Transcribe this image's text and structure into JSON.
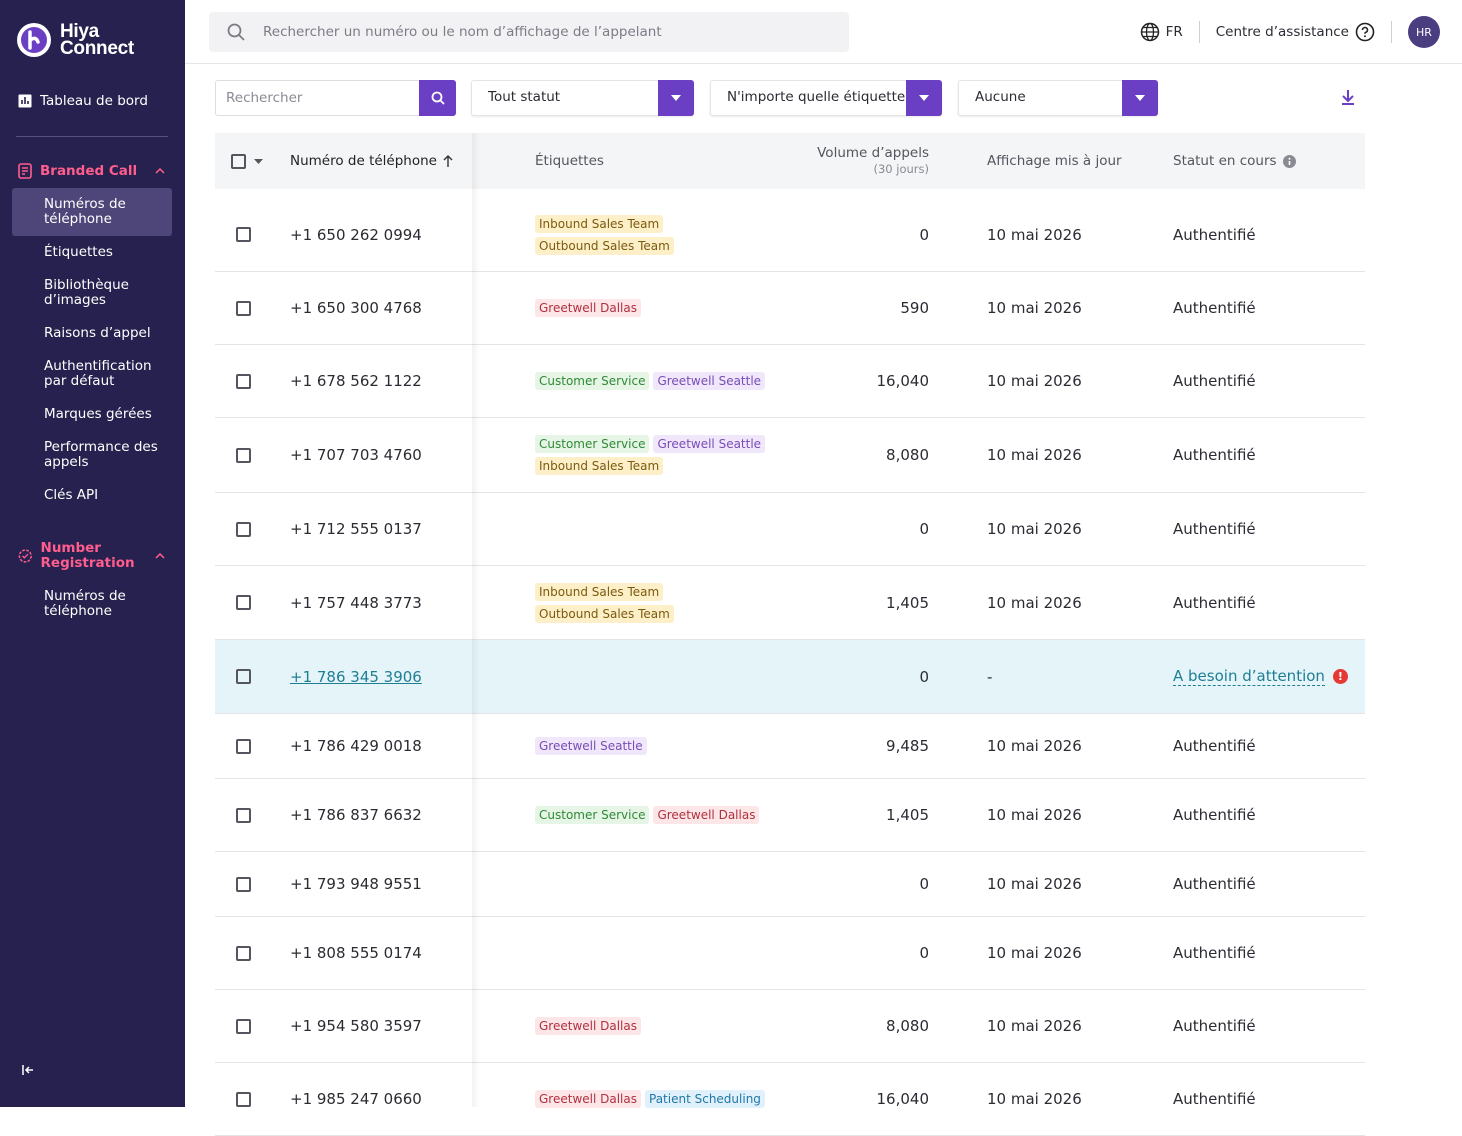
{
  "brand": {
    "line1": "Hiya",
    "line2": "Connect"
  },
  "nav": {
    "dashboard": "Tableau de bord",
    "sections": [
      {
        "title": "Branded Call",
        "items": [
          "Numéros de téléphone",
          "Étiquettes",
          "Bibliothèque d’images",
          "Raisons d’appel",
          "Authentification par défaut",
          "Marques gérées",
          "Performance des appels",
          "Clés API"
        ]
      },
      {
        "title": "Number Registration",
        "items": [
          "Numéros de téléphone"
        ]
      }
    ]
  },
  "topbar": {
    "search_placeholder": "Rechercher un numéro ou le nom d’affichage de l’appelant",
    "language": "FR",
    "help": "Centre d’assistance",
    "avatar": "HR"
  },
  "filters": {
    "search_placeholder": "Rechercher",
    "status": "Tout statut",
    "label": "N'importe quelle étiquette",
    "other": "Aucune"
  },
  "table": {
    "headers": {
      "phone": "Numéro de téléphone",
      "labels": "Étiquettes",
      "volume": "Volume d’appels",
      "volume_sub": "(30 jours)",
      "updated": "Affichage mis à jour",
      "status": "Statut en cours"
    },
    "rows": [
      {
        "phone": "+1 650 262 0994",
        "tags": [
          {
            "label": "Inbound Sales Team",
            "tone": "yellow"
          },
          {
            "label": "Outbound Sales Team",
            "tone": "yellow"
          }
        ],
        "volume": "0",
        "updated": "10 mai 2026",
        "status": "Authentifié"
      },
      {
        "phone": "+1 650 300 4768",
        "tags": [
          {
            "label": "Greetwell Dallas",
            "tone": "red"
          }
        ],
        "volume": "590",
        "updated": "10 mai 2026",
        "status": "Authentifié"
      },
      {
        "phone": "+1 678 562 1122",
        "tags": [
          {
            "label": "Customer Service",
            "tone": "green"
          },
          {
            "label": "Greetwell Seattle",
            "tone": "purple"
          }
        ],
        "volume": "16,040",
        "updated": "10 mai 2026",
        "status": "Authentifié"
      },
      {
        "phone": "+1 707 703 4760",
        "tags": [
          {
            "label": "Customer Service",
            "tone": "green"
          },
          {
            "label": "Greetwell Seattle",
            "tone": "purple"
          },
          {
            "label": "Inbound Sales Team",
            "tone": "yellow"
          }
        ],
        "volume": "8,080",
        "updated": "10 mai 2026",
        "status": "Authentifié"
      },
      {
        "phone": "+1 712 555 0137",
        "tags": [],
        "volume": "0",
        "updated": "10 mai 2026",
        "status": "Authentifié"
      },
      {
        "phone": "+1 757 448 3773",
        "tags": [
          {
            "label": "Inbound Sales Team",
            "tone": "yellow"
          },
          {
            "label": "Outbound Sales Team",
            "tone": "yellow"
          }
        ],
        "volume": "1,405",
        "updated": "10 mai 2026",
        "status": "Authentifié"
      },
      {
        "phone": "+1 786 345 3906",
        "tags": [],
        "volume": "0",
        "updated": "-",
        "status": "A besoin d’attention",
        "highlighted": true
      },
      {
        "phone": "+1 786 429 0018",
        "tags": [
          {
            "label": "Greetwell Seattle",
            "tone": "purple"
          }
        ],
        "volume": "9,485",
        "updated": "10 mai 2026",
        "status": "Authentifié"
      },
      {
        "phone": "+1 786 837 6632",
        "tags": [
          {
            "label": "Customer Service",
            "tone": "green"
          },
          {
            "label": "Greetwell Dallas",
            "tone": "red"
          }
        ],
        "volume": "1,405",
        "updated": "10 mai 2026",
        "status": "Authentifié"
      },
      {
        "phone": "+1 793 948 9551",
        "tags": [],
        "volume": "0",
        "updated": "10 mai 2026",
        "status": "Authentifié"
      },
      {
        "phone": "+1 808 555 0174",
        "tags": [],
        "volume": "0",
        "updated": "10 mai 2026",
        "status": "Authentifié"
      },
      {
        "phone": "+1 954 580 3597",
        "tags": [
          {
            "label": "Greetwell Dallas",
            "tone": "red"
          }
        ],
        "volume": "8,080",
        "updated": "10 mai 2026",
        "status": "Authentifié"
      },
      {
        "phone": "+1 985 247 0660",
        "tags": [
          {
            "label": "Greetwell Dallas",
            "tone": "red"
          },
          {
            "label": "Patient Scheduling",
            "tone": "blue"
          }
        ],
        "volume": "16,040",
        "updated": "10 mai 2026",
        "status": "Authentifié"
      }
    ]
  }
}
